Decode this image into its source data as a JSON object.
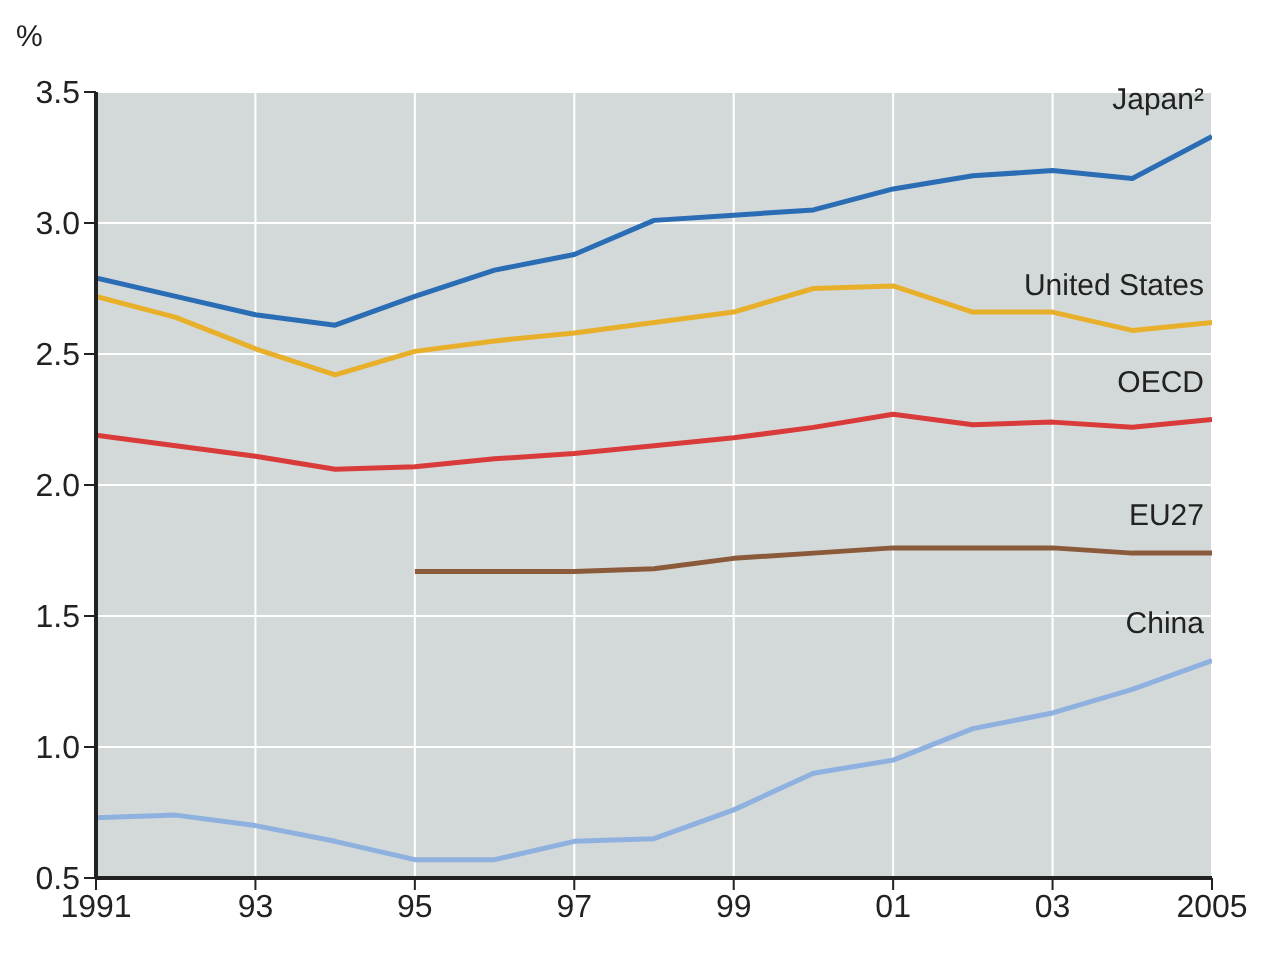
{
  "chart_data": {
    "type": "line",
    "ylabel": "%",
    "x": [
      1991,
      1992,
      1993,
      1994,
      1995,
      1996,
      1997,
      1998,
      1999,
      2000,
      2001,
      2002,
      2003,
      2004,
      2005
    ],
    "series": [
      {
        "name": "Japan²",
        "color": "#2a6db5",
        "values": [
          2.79,
          2.72,
          2.65,
          2.61,
          2.72,
          2.82,
          2.88,
          3.01,
          3.03,
          3.05,
          3.13,
          3.18,
          3.2,
          3.17,
          3.33
        ]
      },
      {
        "name": "United States",
        "color": "#e8b02a",
        "values": [
          2.72,
          2.64,
          2.52,
          2.42,
          2.51,
          2.55,
          2.58,
          2.62,
          2.66,
          2.75,
          2.76,
          2.66,
          2.66,
          2.59,
          2.62
        ]
      },
      {
        "name": "OECD",
        "color": "#d93b3a",
        "values": [
          2.19,
          2.15,
          2.11,
          2.06,
          2.07,
          2.1,
          2.12,
          2.15,
          2.18,
          2.22,
          2.27,
          2.23,
          2.24,
          2.22,
          2.25
        ]
      },
      {
        "name": "EU27",
        "color": "#8a5a3a",
        "values": [
          null,
          null,
          null,
          null,
          1.67,
          1.67,
          1.67,
          1.68,
          1.72,
          1.74,
          1.76,
          1.76,
          1.76,
          1.74,
          1.74
        ]
      },
      {
        "name": "China",
        "color": "#8fb1e0",
        "values": [
          0.73,
          0.74,
          0.7,
          0.64,
          0.57,
          0.57,
          0.64,
          0.65,
          0.76,
          0.9,
          0.95,
          1.07,
          1.13,
          1.22,
          1.33
        ]
      }
    ],
    "xlim": [
      1991,
      2005
    ],
    "xticks": [
      1991,
      {
        "value": 1993,
        "label": "93"
      },
      {
        "value": 1995,
        "label": "95"
      },
      {
        "value": 1997,
        "label": "97"
      },
      {
        "value": 1999,
        "label": "99"
      },
      {
        "value": 2001,
        "label": "01"
      },
      {
        "value": 2003,
        "label": "03"
      },
      2005
    ],
    "ylim": [
      0.5,
      3.5
    ],
    "yticks": [
      {
        "value": 0.5,
        "label": "0.5"
      },
      {
        "value": 1,
        "label": "1.0"
      },
      {
        "value": 1.5,
        "label": "1.5"
      },
      {
        "value": 2,
        "label": "2.0"
      },
      {
        "value": 2.5,
        "label": "2.5"
      },
      {
        "value": 3,
        "label": "3.0"
      },
      {
        "value": 3.5,
        "label": "3.5"
      }
    ],
    "grid": true,
    "legend": false,
    "marker": "none",
    "line_style": "solid"
  }
}
